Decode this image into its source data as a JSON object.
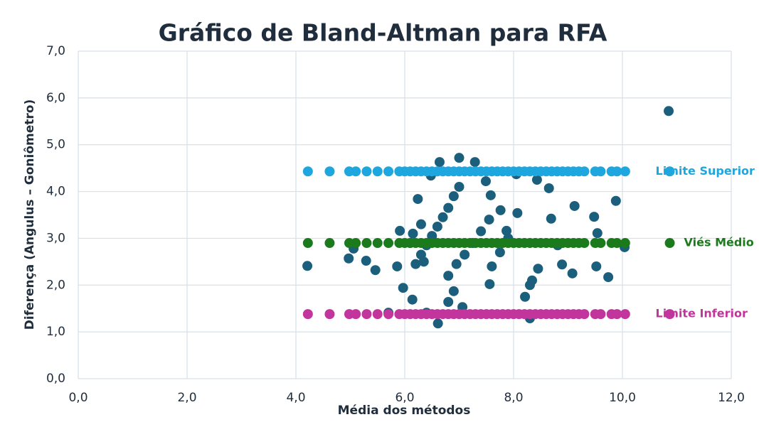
{
  "chart_data": {
    "type": "scatter",
    "title": "Gráfico de Bland-Altman para RFA",
    "x_label": "Média dos métodos",
    "y_label": "Diferença (Angulus – Goniômetro)",
    "xlim": [
      0,
      12
    ],
    "ylim": [
      0,
      7
    ],
    "xticks": [
      {
        "value": 0,
        "label": "0,0"
      },
      {
        "value": 2,
        "label": "2,0"
      },
      {
        "value": 4,
        "label": "4,0"
      },
      {
        "value": 6,
        "label": "6,0"
      },
      {
        "value": 8,
        "label": "8,0"
      },
      {
        "value": 10,
        "label": "10,0"
      },
      {
        "value": 12,
        "label": "12,0"
      }
    ],
    "yticks": [
      {
        "value": 0,
        "label": "0,0"
      },
      {
        "value": 1,
        "label": "1,0"
      },
      {
        "value": 2,
        "label": "2,0"
      },
      {
        "value": 3,
        "label": "3,0"
      },
      {
        "value": 4,
        "label": "4,0"
      },
      {
        "value": 5,
        "label": "5,0"
      },
      {
        "value": 6,
        "label": "6,0"
      },
      {
        "value": 7,
        "label": "7,0"
      }
    ],
    "grid": true,
    "series": [
      {
        "color": "#1b5f7c",
        "x": [
          4.21,
          4.97,
          5.29,
          5.06,
          5.46,
          5.91,
          5.86,
          5.97,
          6.14,
          6.24,
          6.48,
          6.64,
          6.61,
          7.0,
          7.29,
          7.49,
          7.58,
          7.76,
          7.87,
          8.05,
          8.07,
          8.43,
          8.65,
          8.69,
          8.81,
          8.89,
          9.08,
          9.12,
          9.48,
          9.54,
          9.52,
          9.74,
          9.88,
          10.04,
          10.85,
          8.34,
          8.21,
          8.3,
          7.56,
          7.06,
          6.8,
          6.9,
          6.4,
          5.7,
          6.2,
          6.3,
          6.4,
          6.5,
          6.6,
          6.7,
          6.8,
          6.9,
          7.0,
          6.8,
          6.95,
          7.1,
          7.25,
          7.4,
          7.55,
          7.6,
          7.75,
          7.9,
          8.3,
          8.45,
          6.1,
          6.15,
          6.3,
          6.35
        ],
        "values": [
          2.41,
          2.57,
          2.52,
          2.78,
          2.32,
          3.16,
          2.4,
          1.94,
          1.69,
          3.84,
          4.34,
          4.63,
          1.18,
          4.72,
          4.63,
          4.22,
          3.92,
          3.6,
          3.16,
          4.37,
          3.54,
          4.25,
          4.07,
          3.42,
          2.85,
          2.44,
          2.25,
          3.69,
          3.46,
          3.11,
          2.4,
          2.17,
          3.8,
          2.81,
          5.72,
          2.1,
          1.75,
          1.29,
          2.02,
          1.53,
          1.64,
          1.87,
          1.41,
          1.41,
          2.45,
          2.65,
          2.85,
          3.05,
          3.25,
          3.45,
          3.65,
          3.9,
          4.1,
          2.2,
          2.45,
          2.65,
          2.9,
          3.15,
          3.4,
          2.4,
          2.7,
          3.0,
          2.0,
          2.35,
          2.9,
          3.1,
          3.3,
          2.5
        ]
      },
      {
        "name": "Limite Superior",
        "color": "#1ea7de",
        "x": [
          4.22,
          4.62,
          4.98,
          5.1,
          5.3,
          5.5,
          5.7,
          5.9,
          6.0,
          6.1,
          6.2,
          6.3,
          6.4,
          6.5,
          6.6,
          6.7,
          6.8,
          6.9,
          7.0,
          7.1,
          7.2,
          7.3,
          7.4,
          7.5,
          7.6,
          7.7,
          7.8,
          7.9,
          8.0,
          8.1,
          8.2,
          8.3,
          8.4,
          8.5,
          8.6,
          8.7,
          8.8,
          8.9,
          9.0,
          9.1,
          9.2,
          9.3,
          9.5,
          9.6,
          9.8,
          9.9,
          10.05,
          10.87
        ],
        "values": [
          4.43,
          4.43,
          4.43,
          4.43,
          4.43,
          4.43,
          4.43,
          4.43,
          4.43,
          4.43,
          4.43,
          4.43,
          4.43,
          4.43,
          4.43,
          4.43,
          4.43,
          4.43,
          4.43,
          4.43,
          4.43,
          4.43,
          4.43,
          4.43,
          4.43,
          4.43,
          4.43,
          4.43,
          4.43,
          4.43,
          4.43,
          4.43,
          4.43,
          4.43,
          4.43,
          4.43,
          4.43,
          4.43,
          4.43,
          4.43,
          4.43,
          4.43,
          4.43,
          4.43,
          4.43,
          4.43,
          4.43,
          4.43
        ]
      },
      {
        "name": "Viés Médio",
        "color": "#1b7a1b",
        "x": [
          4.22,
          4.62,
          4.98,
          5.1,
          5.3,
          5.5,
          5.7,
          5.9,
          6.0,
          6.1,
          6.2,
          6.3,
          6.4,
          6.5,
          6.6,
          6.7,
          6.8,
          6.9,
          7.0,
          7.1,
          7.2,
          7.3,
          7.4,
          7.5,
          7.6,
          7.7,
          7.8,
          7.9,
          8.0,
          8.1,
          8.2,
          8.3,
          8.4,
          8.5,
          8.6,
          8.7,
          8.8,
          8.9,
          9.0,
          9.1,
          9.2,
          9.3,
          9.5,
          9.6,
          9.8,
          9.9,
          10.05,
          10.87
        ],
        "values": [
          2.9,
          2.9,
          2.9,
          2.9,
          2.9,
          2.9,
          2.9,
          2.9,
          2.9,
          2.9,
          2.9,
          2.9,
          2.9,
          2.9,
          2.9,
          2.9,
          2.9,
          2.9,
          2.9,
          2.9,
          2.9,
          2.9,
          2.9,
          2.9,
          2.9,
          2.9,
          2.9,
          2.9,
          2.9,
          2.9,
          2.9,
          2.9,
          2.9,
          2.9,
          2.9,
          2.9,
          2.9,
          2.9,
          2.9,
          2.9,
          2.9,
          2.9,
          2.9,
          2.9,
          2.9,
          2.9,
          2.9,
          2.9
        ]
      },
      {
        "name": "Limite Inferior",
        "color": "#c2359d",
        "x": [
          4.22,
          4.62,
          4.98,
          5.1,
          5.3,
          5.5,
          5.7,
          5.9,
          6.0,
          6.1,
          6.2,
          6.3,
          6.4,
          6.5,
          6.6,
          6.7,
          6.8,
          6.9,
          7.0,
          7.1,
          7.2,
          7.3,
          7.4,
          7.5,
          7.6,
          7.7,
          7.8,
          7.9,
          8.0,
          8.1,
          8.2,
          8.3,
          8.4,
          8.5,
          8.6,
          8.7,
          8.8,
          8.9,
          9.0,
          9.1,
          9.2,
          9.3,
          9.5,
          9.6,
          9.8,
          9.9,
          10.05,
          10.87
        ],
        "values": [
          1.38,
          1.38,
          1.38,
          1.38,
          1.38,
          1.38,
          1.38,
          1.38,
          1.38,
          1.38,
          1.38,
          1.38,
          1.38,
          1.38,
          1.38,
          1.38,
          1.38,
          1.38,
          1.38,
          1.38,
          1.38,
          1.38,
          1.38,
          1.38,
          1.38,
          1.38,
          1.38,
          1.38,
          1.38,
          1.38,
          1.38,
          1.38,
          1.38,
          1.38,
          1.38,
          1.38,
          1.38,
          1.38,
          1.38,
          1.38,
          1.38,
          1.38,
          1.38,
          1.38,
          1.38,
          1.38,
          1.38,
          1.38
        ]
      }
    ]
  }
}
